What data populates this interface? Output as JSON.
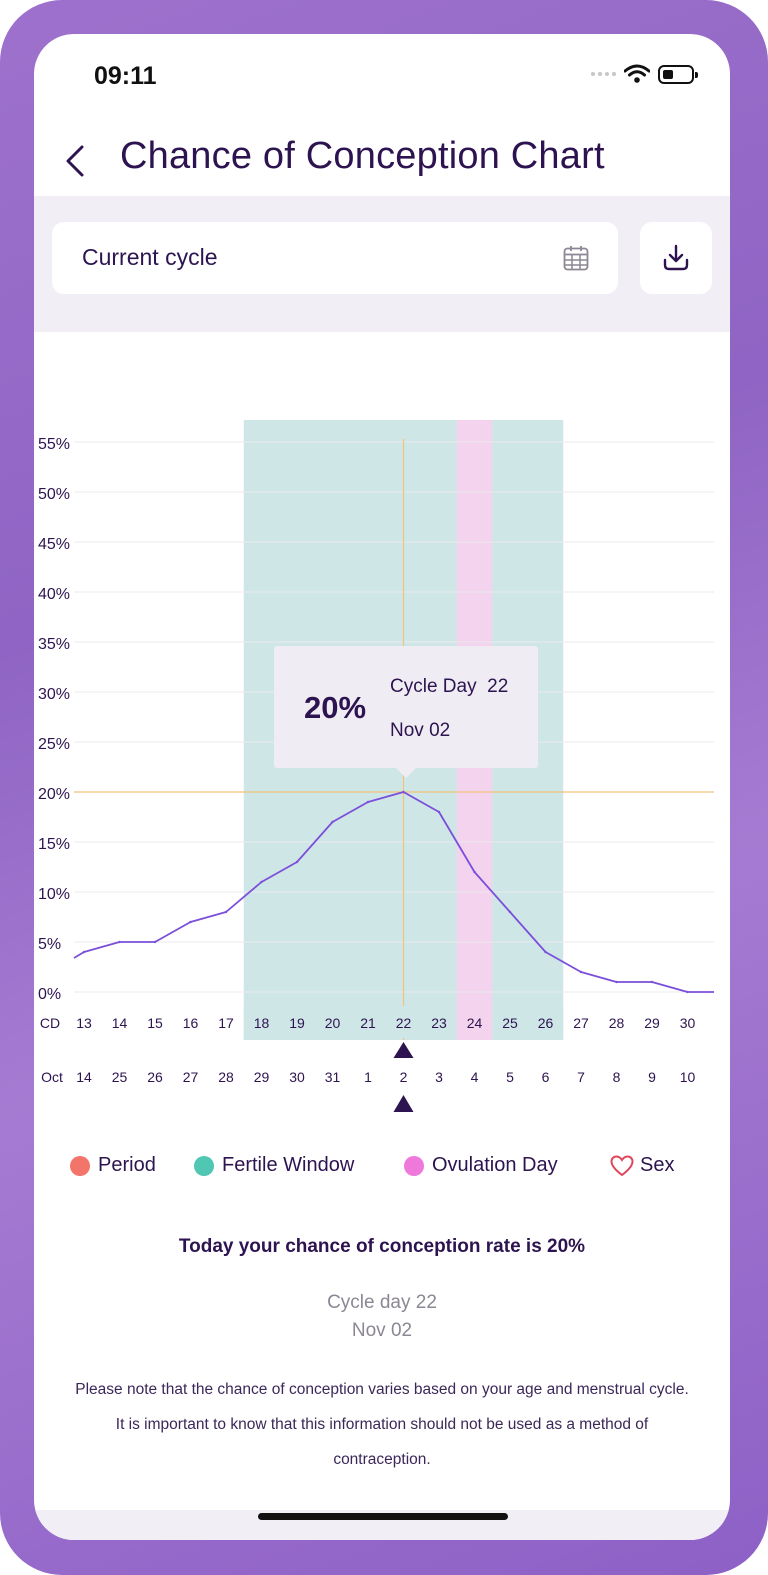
{
  "status_bar": {
    "time": "09:11"
  },
  "header": {
    "title": "Chance of Conception Chart"
  },
  "filter": {
    "cycle_label": "Current cycle"
  },
  "colors": {
    "accent": "#2d1450",
    "line": "#7b4fd9",
    "fertile_window": "#cfe6e7",
    "ovulation_day": "#f3d3ee",
    "guide": "#f1c27a",
    "period": "#f2746a",
    "fertile_legend": "#4fc7b3",
    "ovulation_legend": "#ef78db",
    "sex_legend": "#e0465a"
  },
  "chart_data": {
    "type": "line",
    "title": "",
    "xlabel": "",
    "ylabel": "",
    "ylim": [
      0,
      55
    ],
    "yticks": [
      "0%",
      "5%",
      "10%",
      "15%",
      "20%",
      "25%",
      "30%",
      "35%",
      "40%",
      "45%",
      "50%",
      "55%"
    ],
    "cd_prefix": "CD",
    "month_prefix": "Oct",
    "cycle_days": [
      13,
      14,
      15,
      16,
      17,
      18,
      19,
      20,
      21,
      22,
      23,
      24,
      25,
      26,
      27,
      28,
      29,
      30
    ],
    "dates": [
      "14",
      "25",
      "26",
      "27",
      "28",
      "29",
      "30",
      "31",
      "1",
      "2",
      "3",
      "4",
      "5",
      "6",
      "7",
      "8",
      "9",
      "10"
    ],
    "series": [
      {
        "values": [
          4,
          5,
          5,
          7,
          8,
          11,
          13,
          17,
          19,
          20,
          18,
          12,
          8,
          4,
          2,
          1,
          1,
          0
        ]
      }
    ],
    "fertile_window": {
      "start_cycle_day": 18,
      "end_cycle_day": 26
    },
    "ovulation_day": 24,
    "selected": {
      "cycle_day": 22,
      "value": 20
    },
    "tooltip": {
      "percent": "20%",
      "cycle_day_label": "Cycle Day",
      "cycle_day_value": "22",
      "date": "Nov 02"
    }
  },
  "legend": [
    {
      "label": "Period",
      "icon": "period-dot"
    },
    {
      "label": "Fertile Window",
      "icon": "fertile-window-dot"
    },
    {
      "label": "Ovulation Day",
      "icon": "ovulation-day-dot"
    },
    {
      "label": "Sex",
      "icon": "heart-outline-icon"
    }
  ],
  "summary": {
    "title": "Today your chance of conception rate is 20%",
    "cycle_day": "Cycle day 22",
    "date": "Nov 02",
    "note": "Please note that the chance of conception varies based on your age and menstrual cycle. It is important to know that this information should not be used as a method of contraception."
  }
}
